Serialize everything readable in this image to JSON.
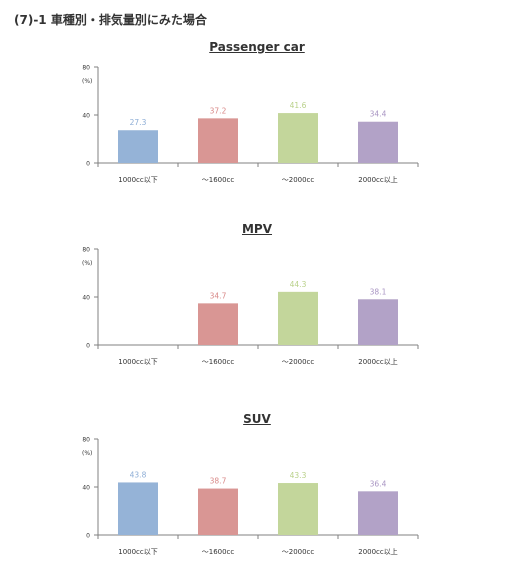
{
  "page": {
    "heading": "(7)-1 車種別・排気量別にみた場合"
  },
  "chart_data": [
    {
      "type": "bar",
      "title": "Passenger car",
      "ylabel": "(%)",
      "ylim": [
        0,
        80
      ],
      "yticks": [
        0,
        40,
        80
      ],
      "categories": [
        "1000cc以下",
        "～1600cc",
        "～2000cc",
        "2000cc以上"
      ],
      "values": [
        27.3,
        37.2,
        41.6,
        34.4
      ],
      "labels": [
        "27.3",
        "37.2",
        "41.6",
        "34.4"
      ]
    },
    {
      "type": "bar",
      "title": "MPV",
      "ylabel": "(%)",
      "ylim": [
        0,
        80
      ],
      "yticks": [
        0,
        40,
        80
      ],
      "categories": [
        "1000cc以下",
        "～1600cc",
        "～2000cc",
        "2000cc以上"
      ],
      "values": [
        null,
        34.7,
        44.3,
        38.1
      ],
      "labels": [
        "",
        "34.7",
        "44.3",
        "38.1"
      ]
    },
    {
      "type": "bar",
      "title": "SUV",
      "ylabel": "(%)",
      "ylim": [
        0,
        80
      ],
      "yticks": [
        0,
        40,
        80
      ],
      "categories": [
        "1000cc以下",
        "～1600cc",
        "～2000cc",
        "2000cc以上"
      ],
      "values": [
        43.8,
        38.7,
        43.3,
        36.4
      ],
      "labels": [
        "43.8",
        "38.7",
        "43.3",
        "36.4"
      ]
    }
  ],
  "colors": {
    "bars": [
      "#95b3d7",
      "#d99694",
      "#c3d69b",
      "#b2a2c7"
    ],
    "labels": [
      "#8eaed6",
      "#d98a89",
      "#b9d18a",
      "#a995c3"
    ],
    "axis": "#808080",
    "text": "#333333"
  }
}
